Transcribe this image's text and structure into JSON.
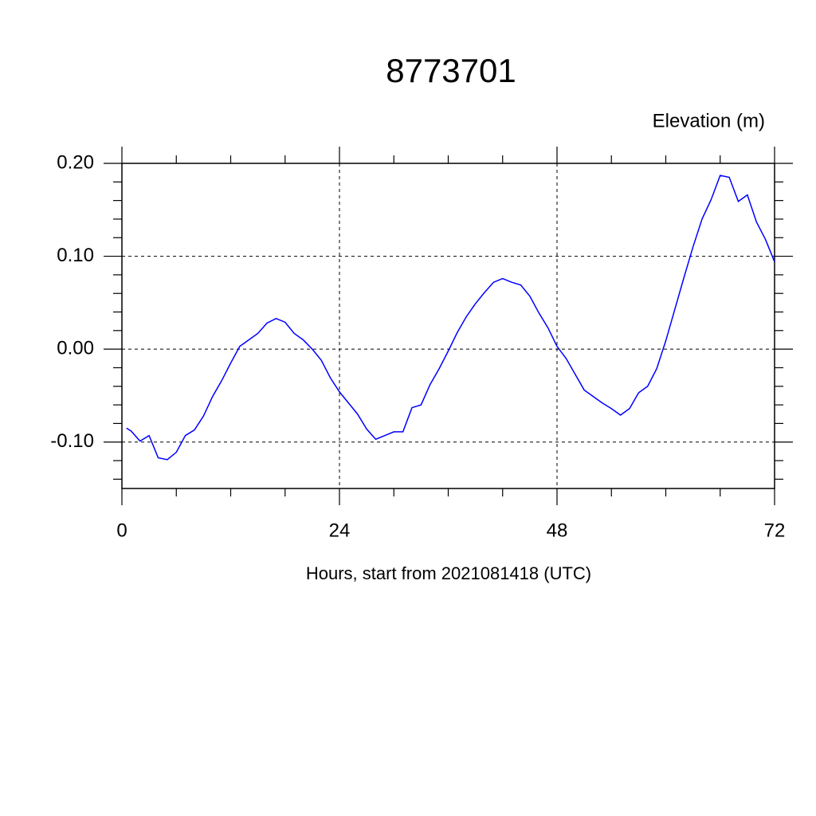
{
  "chart_data": {
    "type": "line",
    "title": "8773701",
    "subtitle": "Elevation (m)",
    "x_label": "Hours, start from 2021081418 (UTC)",
    "x": [
      0.5,
      1,
      2,
      3,
      4,
      5,
      6,
      7,
      8,
      9,
      10,
      11,
      12,
      13,
      14,
      15,
      16,
      17,
      18,
      19,
      20,
      21,
      22,
      23,
      24,
      25,
      26,
      27,
      28,
      29,
      30,
      31,
      32,
      33,
      34,
      35,
      36,
      37,
      38,
      39,
      40,
      41,
      42,
      43,
      44,
      45,
      46,
      47,
      48,
      49,
      50,
      51,
      52,
      53,
      54,
      55,
      56,
      57,
      58,
      59,
      60,
      61,
      62,
      63,
      64,
      65,
      66,
      67,
      68,
      69,
      70,
      71,
      72
    ],
    "series": [
      {
        "color": "#0000ff",
        "values": [
          -0.085,
          -0.088,
          -0.099,
          -0.093,
          -0.117,
          -0.119,
          -0.111,
          -0.093,
          -0.087,
          -0.072,
          -0.051,
          -0.034,
          -0.015,
          0.003,
          0.01,
          0.017,
          0.028,
          0.033,
          0.029,
          0.017,
          0.01,
          0.0,
          -0.012,
          -0.031,
          -0.046,
          -0.058,
          -0.07,
          -0.086,
          -0.097,
          -0.093,
          -0.089,
          -0.089,
          -0.063,
          -0.06,
          -0.038,
          -0.021,
          -0.002,
          0.018,
          0.035,
          0.049,
          0.061,
          0.072,
          0.076,
          0.072,
          0.069,
          0.057,
          0.039,
          0.023,
          0.003,
          -0.01,
          -0.027,
          -0.044,
          -0.051,
          -0.058,
          -0.064,
          -0.071,
          -0.064,
          -0.047,
          -0.04,
          -0.021,
          0.009,
          0.043,
          0.077,
          0.11,
          0.14,
          0.161,
          0.187,
          0.185,
          0.159,
          0.166,
          0.137,
          0.118,
          0.094
        ]
      }
    ],
    "xlim": [
      0,
      72
    ],
    "ylim": [
      -0.15,
      0.2
    ],
    "xticks": [
      0,
      24,
      48,
      72
    ],
    "yticks": [
      {
        "value": -0.1,
        "label": "-0.10"
      },
      {
        "value": 0,
        "label": "0.00"
      },
      {
        "value": 0.1,
        "label": "0.10"
      },
      {
        "value": 0.2,
        "label": "0.20"
      }
    ],
    "xminorticks": [
      6,
      12,
      18,
      30,
      36,
      42,
      54,
      60,
      66
    ],
    "yminorticks": [
      -0.14,
      -0.12,
      -0.08,
      -0.06,
      -0.04,
      -0.02,
      0.02,
      0.04,
      0.06,
      0.08,
      0.12,
      0.14,
      0.16,
      0.18
    ],
    "grid": true
  }
}
